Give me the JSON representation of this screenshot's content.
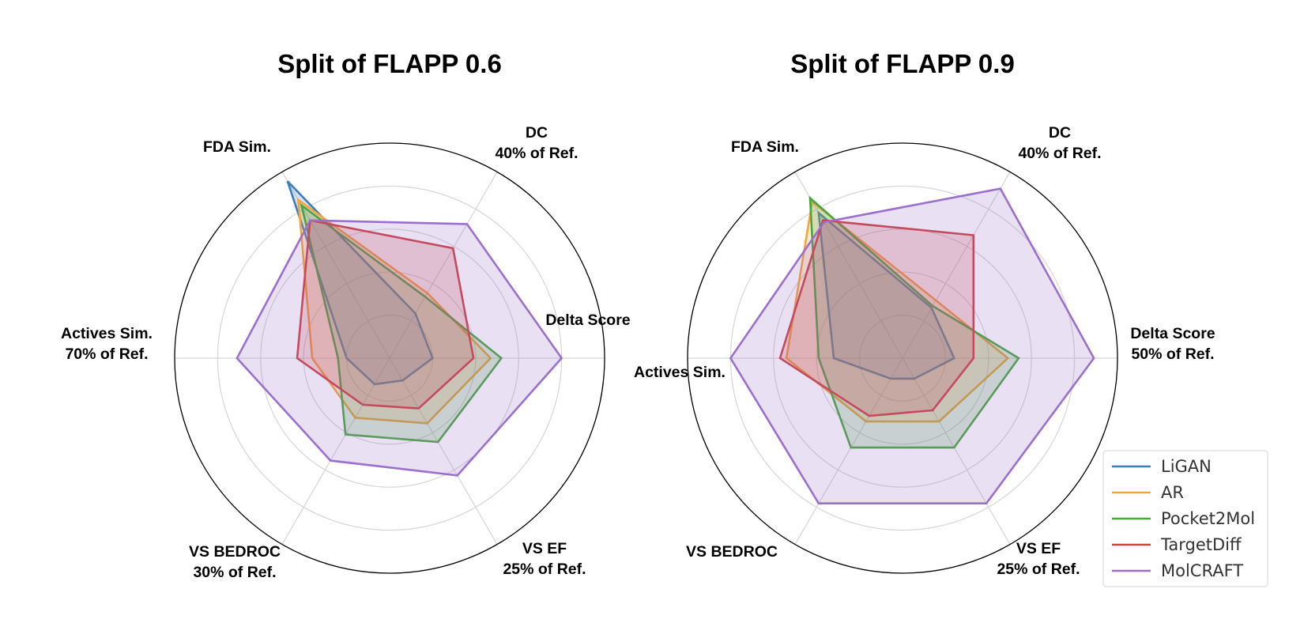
{
  "colors": {
    "LiGAN": "#3b7dbf",
    "AR": "#f5a43a",
    "Pocket2Mol": "#4aa53d",
    "TargetDiff": "#d0403f",
    "MolCRAFT": "#9a70cc"
  },
  "legend": {
    "items": [
      "LiGAN",
      "AR",
      "Pocket2Mol",
      "TargetDiff",
      "MolCRAFT"
    ],
    "placement": "bottom-right"
  },
  "chart_data": [
    {
      "type": "radar",
      "title": "Split of FLAPP 0.6",
      "axes": [
        {
          "line1": "Delta Score",
          "line2": ""
        },
        {
          "line1": "DC",
          "line2": "40% of Ref."
        },
        {
          "line1": "FDA Sim.",
          "line2": ""
        },
        {
          "line1": "Actives Sim.",
          "line2": "70% of Ref."
        },
        {
          "line1": "VS BEDROC",
          "line2": "30% of Ref."
        },
        {
          "line1": "VS EF",
          "line2": "25% of Ref."
        }
      ],
      "rlim": [
        0,
        1
      ],
      "grid_rings": [
        0.2,
        0.4,
        0.6,
        0.8
      ],
      "series": [
        {
          "name": "LiGAN",
          "values": [
            0.2,
            0.24,
            0.95,
            0.2,
            0.14,
            0.12
          ]
        },
        {
          "name": "AR",
          "values": [
            0.47,
            0.35,
            0.85,
            0.36,
            0.32,
            0.35
          ]
        },
        {
          "name": "Pocket2Mol",
          "values": [
            0.52,
            0.33,
            0.82,
            0.24,
            0.41,
            0.45
          ]
        },
        {
          "name": "TargetDiff",
          "values": [
            0.39,
            0.59,
            0.74,
            0.43,
            0.25,
            0.27
          ]
        },
        {
          "name": "MolCRAFT",
          "values": [
            0.8,
            0.72,
            0.74,
            0.71,
            0.55,
            0.63
          ]
        }
      ]
    },
    {
      "type": "radar",
      "title": "Split of FLAPP 0.9",
      "axes": [
        {
          "line1": "Delta Score",
          "line2": "50% of Ref."
        },
        {
          "line1": "DC",
          "line2": "40% of Ref."
        },
        {
          "line1": "FDA Sim.",
          "line2": ""
        },
        {
          "line1": "Actives Sim.",
          "line2": ""
        },
        {
          "line1": "VS BEDROC",
          "line2": ""
        },
        {
          "line1": "VS EF",
          "line2": "25% of Ref."
        }
      ],
      "rlim": [
        0,
        1
      ],
      "grid_rings": [
        0.2,
        0.4,
        0.6,
        0.8
      ],
      "series": [
        {
          "name": "LiGAN",
          "values": [
            0.24,
            0.27,
            0.78,
            0.32,
            0.11,
            0.11
          ]
        },
        {
          "name": "AR",
          "values": [
            0.49,
            0.31,
            0.84,
            0.54,
            0.34,
            0.34
          ]
        },
        {
          "name": "Pocket2Mol",
          "values": [
            0.54,
            0.28,
            0.86,
            0.39,
            0.48,
            0.48
          ]
        },
        {
          "name": "TargetDiff",
          "values": [
            0.33,
            0.66,
            0.74,
            0.57,
            0.31,
            0.28
          ]
        },
        {
          "name": "MolCRAFT",
          "values": [
            0.89,
            0.91,
            0.73,
            0.8,
            0.78,
            0.78
          ]
        }
      ]
    }
  ]
}
